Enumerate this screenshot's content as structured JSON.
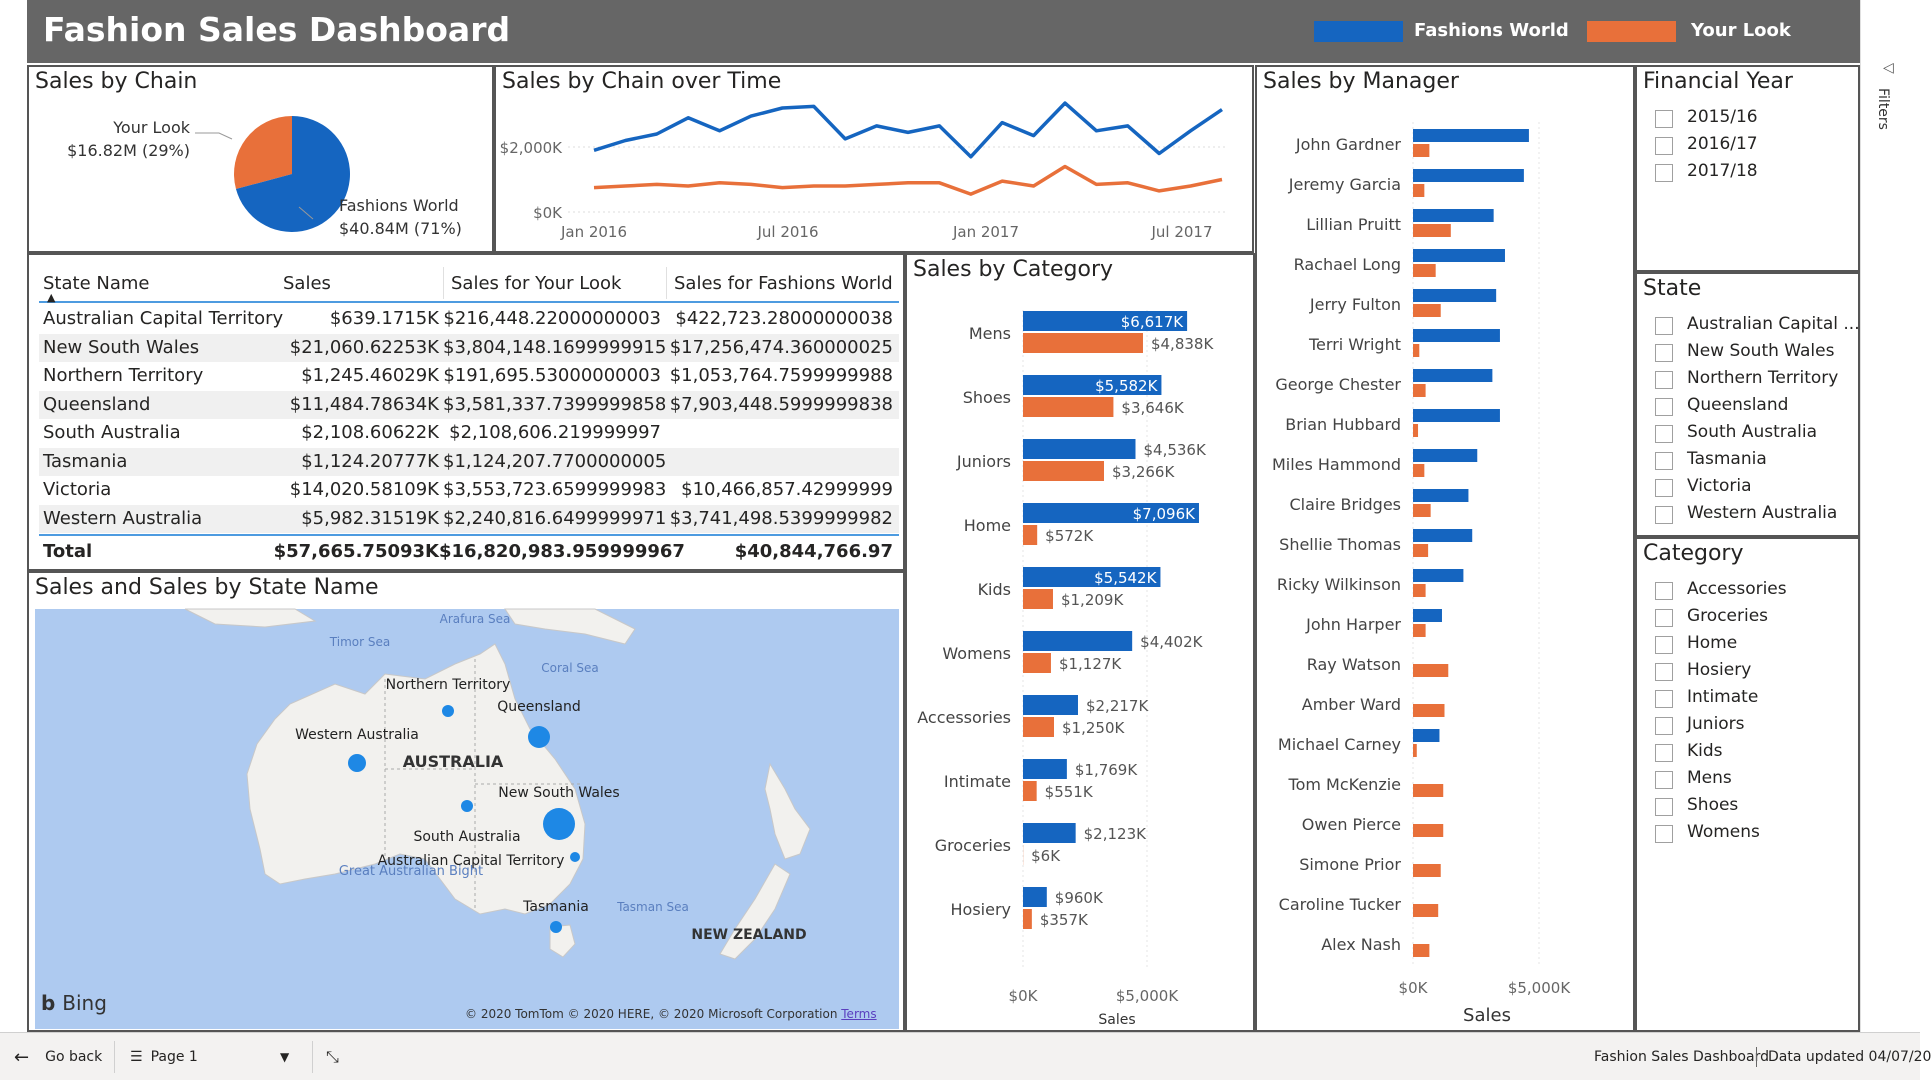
{
  "header": {
    "title": "Fashion Sales Dashboard",
    "legend": [
      {
        "name": "Fashions World",
        "color": "#1565c0"
      },
      {
        "name": "Your Look",
        "color": "#e8703a"
      }
    ]
  },
  "pie": {
    "title": "Sales by Chain",
    "slices": [
      {
        "name": "Your Look",
        "value_label": "$16.82M (29%)",
        "share": 0.29,
        "color": "#e8703a"
      },
      {
        "name": "Fashions World",
        "value_label": "$40.84M (71%)",
        "share": 0.71,
        "color": "#1565c0"
      }
    ]
  },
  "line": {
    "title": "Sales by Chain over Time",
    "y_ticks": [
      "$2,000K",
      "$0K"
    ],
    "x_ticks": [
      "Jan 2016",
      "Jul 2016",
      "Jan 2017",
      "Jul 2017"
    ]
  },
  "table": {
    "columns": [
      "State Name",
      "Sales",
      "Sales for Your Look",
      "Sales for Fashions World"
    ],
    "sort_indicator": "▲",
    "rows": [
      [
        "Australian Capital Territory",
        "$639.1715K",
        "$216,448.22000000003",
        "$422,723.28000000038"
      ],
      [
        "New South Wales",
        "$21,060.62253K",
        "$3,804,148.1699999915",
        "$17,256,474.360000025"
      ],
      [
        "Northern Territory",
        "$1,245.46029K",
        "$191,695.53000000003",
        "$1,053,764.7599999988"
      ],
      [
        "Queensland",
        "$11,484.78634K",
        "$3,581,337.7399999858",
        "$7,903,448.5999999838"
      ],
      [
        "South Australia",
        "$2,108.60622K",
        "$2,108,606.219999997",
        ""
      ],
      [
        "Tasmania",
        "$1,124.20777K",
        "$1,124,207.7700000005",
        ""
      ],
      [
        "Victoria",
        "$14,020.58109K",
        "$3,553,723.6599999983",
        "$10,466,857.42999999"
      ],
      [
        "Western Australia",
        "$5,982.31519K",
        "$2,240,816.6499999971",
        "$3,741,498.5399999982"
      ]
    ],
    "total": [
      "Total",
      "$57,665.75093K",
      "$16,820,983.959999967",
      "$40,844,766.97"
    ]
  },
  "map": {
    "title": "Sales and Sales by State Name",
    "labels": {
      "arafura": "Arafura Sea",
      "timor": "Timor Sea",
      "coral": "Coral Sea",
      "nt": "Northern Territory",
      "qld": "Queensland",
      "wa": "Western Australia",
      "country": "AUSTRALIA",
      "nsw": "New South Wales",
      "sa": "South Australia",
      "act": "Australian Capital Territory",
      "bight": "Great Australian Bight",
      "tas": "Tasmania",
      "tasman": "Tasman Sea",
      "nz": "NEW ZEALAND"
    },
    "bing": "Bing",
    "copyright": "© 2020 TomTom © 2020 HERE, © 2020 Microsoft Corporation",
    "terms": "Terms"
  },
  "category": {
    "title": "Sales by Category",
    "xlabel": "Sales",
    "x_ticks": [
      "$0K",
      "$5,000K"
    ]
  },
  "manager": {
    "title": "Sales by Manager",
    "xlabel": "Sales",
    "x_ticks": [
      "$0K",
      "$5,000K"
    ]
  },
  "chart_data": [
    {
      "type": "pie",
      "title": "Sales by Chain",
      "categories": [
        "Your Look",
        "Fashions World"
      ],
      "values": [
        16.82,
        40.84
      ],
      "unit": "$M"
    },
    {
      "type": "line",
      "title": "Sales by Chain over Time",
      "x": [
        "2016-01",
        "2016-02",
        "2016-03",
        "2016-04",
        "2016-05",
        "2016-06",
        "2016-07",
        "2016-08",
        "2016-09",
        "2016-10",
        "2016-11",
        "2016-12",
        "2017-01",
        "2017-02",
        "2017-03",
        "2017-04",
        "2017-05",
        "2017-06",
        "2017-07",
        "2017-08",
        "2017-09"
      ],
      "series": [
        {
          "name": "Fashions World",
          "values": [
            1900,
            2200,
            2400,
            2900,
            2500,
            2950,
            3200,
            3250,
            2250,
            2650,
            2450,
            2650,
            1700,
            2750,
            2350,
            3350,
            2500,
            2650,
            1800,
            2500,
            3150
          ]
        },
        {
          "name": "Your Look",
          "values": [
            750,
            800,
            850,
            800,
            900,
            850,
            750,
            800,
            800,
            850,
            900,
            900,
            550,
            950,
            800,
            1400,
            850,
            900,
            650,
            800,
            1000
          ]
        }
      ],
      "ylim": [
        0,
        3400
      ],
      "grid": true
    },
    {
      "type": "bar",
      "title": "Sales by Category",
      "xlabel": "Sales",
      "categories": [
        "Mens",
        "Shoes",
        "Juniors",
        "Home",
        "Kids",
        "Womens",
        "Accessories",
        "Intimate",
        "Groceries",
        "Hosiery"
      ],
      "series": [
        {
          "name": "Fashions World",
          "values": [
            6617,
            5582,
            4536,
            7096,
            5542,
            4402,
            2217,
            1769,
            2123,
            960
          ],
          "labels": [
            "$6,617K",
            "$5,582K",
            "$4,536K",
            "$7,096K",
            "$5,542K",
            "$4,402K",
            "$2,217K",
            "$1,769K",
            "$2,123K",
            "$960K"
          ]
        },
        {
          "name": "Your Look",
          "values": [
            4838,
            3646,
            3266,
            572,
            1209,
            1127,
            1250,
            551,
            6,
            357
          ],
          "labels": [
            "$4,838K",
            "$3,646K",
            "$3,266K",
            "$572K",
            "$1,209K",
            "$1,127K",
            "$1,250K",
            "$551K",
            "$6K",
            "$357K"
          ]
        }
      ],
      "xlim": [
        0,
        7500
      ]
    },
    {
      "type": "bar",
      "title": "Sales by Manager",
      "xlabel": "Sales",
      "categories": [
        "John Gardner",
        "Jeremy Garcia",
        "Lillian Pruitt",
        "Rachael Long",
        "Jerry Fulton",
        "Terri Wright",
        "George Chester",
        "Brian Hubbard",
        "Miles Hammond",
        "Claire Bridges",
        "Shellie Thomas",
        "Ricky Wilkinson",
        "John Harper",
        "Ray Watson",
        "Amber Ward",
        "Michael Carney",
        "Tom McKenzie",
        "Owen Pierce",
        "Simone Prior",
        "Caroline Tucker",
        "Alex Nash"
      ],
      "series": [
        {
          "name": "Fashions World",
          "values": [
            4600,
            4400,
            3200,
            3650,
            3300,
            3450,
            3150,
            3450,
            2550,
            2200,
            2350,
            2000,
            1150,
            0,
            0,
            1050,
            0,
            0,
            0,
            0,
            0
          ]
        },
        {
          "name": "Your Look",
          "values": [
            650,
            450,
            1500,
            900,
            1100,
            250,
            500,
            200,
            450,
            700,
            600,
            500,
            500,
            1400,
            1250,
            150,
            1200,
            1200,
            1100,
            1000,
            650
          ]
        }
      ],
      "xlim": [
        0,
        5200
      ]
    }
  ],
  "slicers": {
    "financial_year": {
      "title": "Financial Year",
      "items": [
        "2015/16",
        "2016/17",
        "2017/18"
      ]
    },
    "state": {
      "title": "State",
      "items": [
        "Australian Capital ...",
        "New South Wales",
        "Northern Territory",
        "Queensland",
        "South Australia",
        "Tasmania",
        "Victoria",
        "Western Australia"
      ]
    },
    "category": {
      "title": "Category",
      "items": [
        "Accessories",
        "Groceries",
        "Home",
        "Hosiery",
        "Intimate",
        "Juniors",
        "Kids",
        "Mens",
        "Shoes",
        "Womens"
      ]
    }
  },
  "filters_pane": {
    "label": "Filters",
    "chevron": "◁"
  },
  "bottom_bar": {
    "go_back": "Go back",
    "page": "Page 1",
    "report_name": "Fashion Sales Dashboard",
    "data_updated": "Data updated 04/07/20"
  }
}
